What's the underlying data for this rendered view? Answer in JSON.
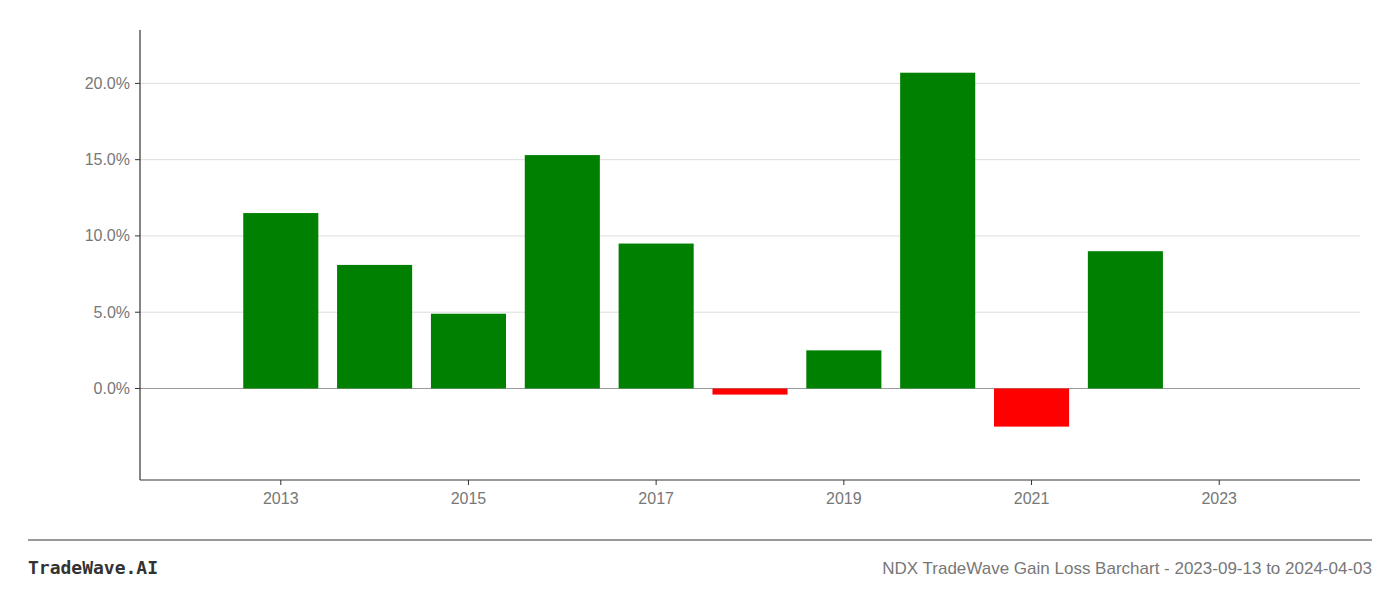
{
  "chart_data": {
    "type": "bar",
    "title": "NDX TradeWave Gain Loss Barchart - 2023-09-13 to 2024-04-03",
    "annotations": [
      "TradeWave.AI"
    ],
    "x": [
      2013,
      2014,
      2015,
      2016,
      2017,
      2018,
      2019,
      2020,
      2021,
      2022
    ],
    "values": [
      0.115,
      0.081,
      0.049,
      0.153,
      0.095,
      -0.004,
      0.025,
      0.207,
      -0.025,
      0.09
    ],
    "colors": [
      "#008000",
      "#008000",
      "#008000",
      "#008000",
      "#008000",
      "#ff0000",
      "#008000",
      "#008000",
      "#ff0000",
      "#008000"
    ],
    "xlim": [
      2011.5,
      2024.5
    ],
    "xticks": [
      2013,
      2015,
      2017,
      2019,
      2021,
      2023
    ],
    "ylim": [
      -0.06,
      0.235
    ],
    "yticks": [
      {
        "value": 0.0,
        "label": "0.0%"
      },
      {
        "value": 0.05,
        "label": "5.0%"
      },
      {
        "value": 0.1,
        "label": "10.0%"
      },
      {
        "value": 0.15,
        "label": "15.0%"
      },
      {
        "value": 0.2,
        "label": "20.0%"
      }
    ],
    "grid": true
  }
}
